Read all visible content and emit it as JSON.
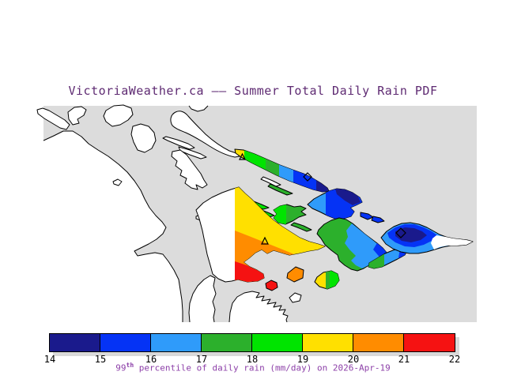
{
  "title": {
    "text": "VictoriaWeather.ca —— Summer Total Daily Rain PDF"
  },
  "caption": {
    "value_prefix": "99",
    "superscript": "th",
    "rest": " percentile of daily rain (mm/day) on 2026-Apr-19"
  },
  "colorbar": {
    "tick_labels": [
      "14",
      "15",
      "16",
      "17",
      "18",
      "19",
      "20",
      "21",
      "22"
    ],
    "segments": [
      {
        "range": "14-15",
        "color": "#1a1a8c"
      },
      {
        "range": "15-16",
        "color": "#0533f5"
      },
      {
        "range": "16-17",
        "color": "#2f9bfa"
      },
      {
        "range": "17-18",
        "color": "#2cb02c"
      },
      {
        "range": "18-19",
        "color": "#00e400"
      },
      {
        "range": "19-20",
        "color": "#ffe000"
      },
      {
        "range": "20-21",
        "color": "#ff8c00"
      },
      {
        "range": "21-22",
        "color": "#f51212"
      }
    ]
  },
  "palette": {
    "water": "#dcdcdc",
    "land": "#ffffff",
    "coast": "#000000",
    "navy": "#1a1a8c",
    "blue": "#0533f5",
    "lightblue": "#2f9bfa",
    "green": "#2cb02c",
    "lime": "#00e400",
    "yellow": "#ffe000",
    "orange": "#ff8c00",
    "red": "#f51212",
    "shadow": "#d9d9d9",
    "title_color": "#5e2a72",
    "caption_color": "#8c3fa8"
  },
  "chart_data": {
    "type": "heatmap",
    "title": "VictoriaWeather.ca —— Summer Total Daily Rain PDF",
    "legend_label": "99th percentile of daily rain (mm/day) on 2026-Apr-19",
    "scale": {
      "min": 14,
      "max": 22,
      "step": 1,
      "units": "mm/day"
    },
    "legend_position": "bottom",
    "regions": [
      {
        "name": "long-northwest-island-chain",
        "value_range": "15-20",
        "note": "graded yellow at NW tip through green to navy-blue at SE end; open triangle marker near NW tip, open diamond marker on blue SE end"
      },
      {
        "name": "thin-slivers-mid-channel",
        "value_range": "18-19"
      },
      {
        "name": "small-spiky-central-island",
        "value_range": "17-19"
      },
      {
        "name": "large-central-island-east-half",
        "value_range": "19-22",
        "note": "yellow upper, orange middle band, red southern lobe; west half of island has no data (white); open triangle marker in yellow zone"
      },
      {
        "name": "tiny-island-south-of-central",
        "value_range": "21-22"
      },
      {
        "name": "small-parallelogram-island",
        "value_range": "20-21"
      },
      {
        "name": "small-round-island-southeast",
        "value_range": "18-20"
      },
      {
        "name": "northeast-island",
        "value_range": "15-17"
      },
      {
        "name": "large-southeast-green-island",
        "value_range": "16-18"
      },
      {
        "name": "narrow-island-below-it",
        "value_range": "16-18"
      },
      {
        "name": "far-east-island",
        "value_range": "14-17",
        "note": "navy core, blue ring, light-blue fringe, white (no-data) eastern tail; open diamond marker on core"
      }
    ]
  }
}
